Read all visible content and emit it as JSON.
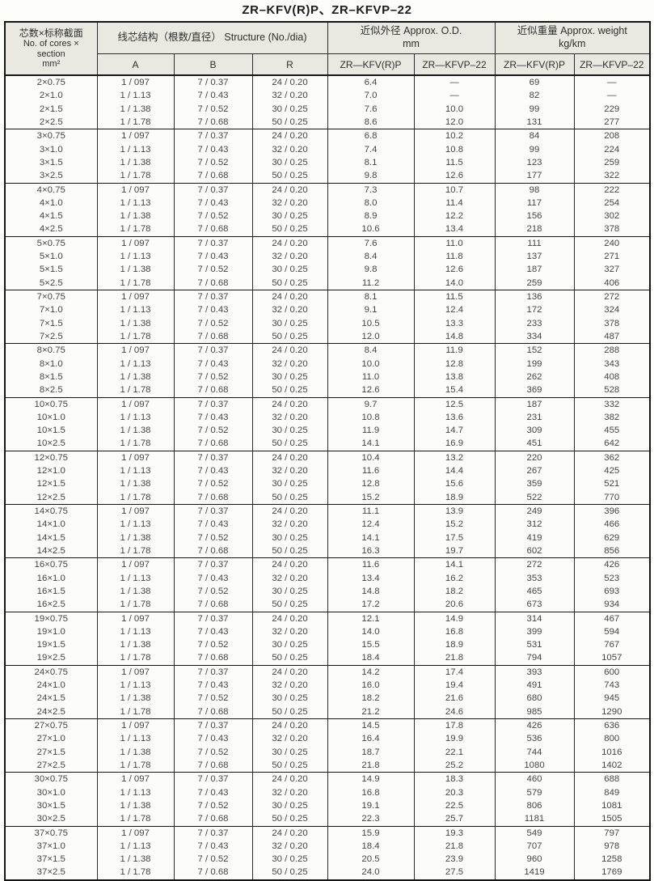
{
  "title": "ZR–KFV(R)P、ZR–KFVP–22",
  "table": {
    "column_keys": [
      "cores-section",
      "structure-a",
      "structure-b",
      "structure-r",
      "od-zr-kfvrp",
      "od-zr-kfvp22",
      "weight-zr-kfvrp",
      "weight-zr-kfvp22"
    ],
    "header": {
      "cores": {
        "zh": "芯数×标称截面",
        "en_line1": "No. of cores ×",
        "en_line2": "section",
        "unit": "mm²"
      },
      "structure": {
        "label": "线芯结构（根数/直径） Structure (No./dia)",
        "sub": [
          "A",
          "B",
          "R"
        ]
      },
      "od": {
        "label": "近似外径 Approx. O.D.",
        "unit": "mm",
        "sub": [
          "ZR—KFV(R)P",
          "ZR—KFVP–22"
        ]
      },
      "weight": {
        "label": "近似重量 Approx. weight",
        "unit": "kg/km",
        "sub": [
          "ZR—KFV(R)P",
          "ZR—KFVP–22"
        ]
      }
    },
    "groups": [
      {
        "core": "2",
        "rows": [
          [
            "2×0.75",
            "1 / 097",
            "7 / 0.37",
            "24 / 0.20",
            "6.4",
            "—",
            "69",
            "—"
          ],
          [
            "2×1.0",
            "1 / 1.13",
            "7 / 0.43",
            "32 / 0.20",
            "7.0",
            "—",
            "82",
            "—"
          ],
          [
            "2×1.5",
            "1 / 1.38",
            "7 / 0.52",
            "30 / 0.25",
            "7.6",
            "10.0",
            "99",
            "229"
          ],
          [
            "2×2.5",
            "1 / 1.78",
            "7 / 0.68",
            "50 / 0.25",
            "8.6",
            "12.0",
            "131",
            "277"
          ]
        ]
      },
      {
        "core": "3",
        "rows": [
          [
            "3×0.75",
            "1 / 097",
            "7 / 0.37",
            "24 / 0.20",
            "6.8",
            "10.2",
            "84",
            "208"
          ],
          [
            "3×1.0",
            "1 / 1.13",
            "7 / 0.43",
            "32 / 0.20",
            "7.4",
            "10.8",
            "99",
            "224"
          ],
          [
            "3×1.5",
            "1 / 1.38",
            "7 / 0.52",
            "30 / 0.25",
            "8.1",
            "11.5",
            "123",
            "259"
          ],
          [
            "3×2.5",
            "1 / 1.78",
            "7 / 0.68",
            "50 / 0.25",
            "9.8",
            "12.6",
            "177",
            "322"
          ]
        ]
      },
      {
        "core": "4",
        "rows": [
          [
            "4×0.75",
            "1 / 097",
            "7 / 0.37",
            "24 / 0.20",
            "7.3",
            "10.7",
            "98",
            "222"
          ],
          [
            "4×1.0",
            "1 / 1.13",
            "7 / 0.43",
            "32 / 0.20",
            "8.0",
            "11.4",
            "117",
            "254"
          ],
          [
            "4×1.5",
            "1 / 1.38",
            "7 / 0.52",
            "30 / 0.25",
            "8.9",
            "12.2",
            "156",
            "302"
          ],
          [
            "4×2.5",
            "1 / 1.78",
            "7 / 0.68",
            "50 / 0.25",
            "10.6",
            "13.4",
            "218",
            "378"
          ]
        ]
      },
      {
        "core": "5",
        "rows": [
          [
            "5×0.75",
            "1 / 097",
            "7 / 0.37",
            "24 / 0.20",
            "7.6",
            "11.0",
            "111",
            "240"
          ],
          [
            "5×1.0",
            "1 / 1.13",
            "7 / 0.43",
            "32 / 0.20",
            "8.4",
            "11.8",
            "137",
            "271"
          ],
          [
            "5×1.5",
            "1 / 1.38",
            "7 / 0.52",
            "30 / 0.25",
            "9.8",
            "12.6",
            "187",
            "327"
          ],
          [
            "5×2.5",
            "1 / 1.78",
            "7 / 0.68",
            "50 / 0.25",
            "11.2",
            "14.0",
            "259",
            "406"
          ]
        ]
      },
      {
        "core": "7",
        "rows": [
          [
            "7×0.75",
            "1 / 097",
            "7 / 0.37",
            "24 / 0.20",
            "8.1",
            "11.5",
            "136",
            "272"
          ],
          [
            "7×1.0",
            "1 / 1.13",
            "7 / 0.43",
            "32 / 0.20",
            "9.1",
            "12.4",
            "172",
            "324"
          ],
          [
            "7×1.5",
            "1 / 1.38",
            "7 / 0.52",
            "30 / 0.25",
            "10.5",
            "13.3",
            "233",
            "378"
          ],
          [
            "7×2.5",
            "1 / 1.78",
            "7 / 0.68",
            "50 / 0.25",
            "12.0",
            "14.8",
            "334",
            "487"
          ]
        ]
      },
      {
        "core": "8",
        "rows": [
          [
            "8×0.75",
            "1 / 097",
            "7 / 0.37",
            "24 / 0.20",
            "8.4",
            "11.9",
            "152",
            "288"
          ],
          [
            "8×1.0",
            "1 / 1.13",
            "7 / 0.43",
            "32 / 0.20",
            "10.0",
            "12.8",
            "199",
            "343"
          ],
          [
            "8×1.5",
            "1 / 1.38",
            "7 / 0.52",
            "30 / 0.25",
            "11.0",
            "13.8",
            "262",
            "408"
          ],
          [
            "8×2.5",
            "1 / 1.78",
            "7 / 0.68",
            "50 / 0.25",
            "12.6",
            "15.4",
            "369",
            "528"
          ]
        ]
      },
      {
        "core": "10",
        "rows": [
          [
            "10×0.75",
            "1 / 097",
            "7 / 0.37",
            "24 / 0.20",
            "9.7",
            "12.5",
            "187",
            "332"
          ],
          [
            "10×1.0",
            "1 / 1.13",
            "7 / 0.43",
            "32 / 0.20",
            "10.8",
            "13.6",
            "231",
            "382"
          ],
          [
            "10×1.5",
            "1 / 1.38",
            "7 / 0.52",
            "30 / 0.25",
            "11.9",
            "14.7",
            "309",
            "455"
          ],
          [
            "10×2.5",
            "1 / 1.78",
            "7 / 0.68",
            "50 / 0.25",
            "14.1",
            "16.9",
            "451",
            "642"
          ]
        ]
      },
      {
        "core": "12",
        "rows": [
          [
            "12×0.75",
            "1 / 097",
            "7 / 0.37",
            "24 / 0.20",
            "10.4",
            "13.2",
            "220",
            "362"
          ],
          [
            "12×1.0",
            "1 / 1.13",
            "7 / 0.43",
            "32 / 0.20",
            "11.6",
            "14.4",
            "267",
            "425"
          ],
          [
            "12×1.5",
            "1 / 1.38",
            "7 / 0.52",
            "30 / 0.25",
            "12.8",
            "15.6",
            "359",
            "521"
          ],
          [
            "12×2.5",
            "1 / 1.78",
            "7 / 0.68",
            "50 / 0.25",
            "15.2",
            "18.9",
            "522",
            "770"
          ]
        ]
      },
      {
        "core": "14",
        "rows": [
          [
            "14×0.75",
            "1 / 097",
            "7 / 0.37",
            "24 / 0.20",
            "11.1",
            "13.9",
            "249",
            "396"
          ],
          [
            "14×1.0",
            "1 / 1.13",
            "7 / 0.43",
            "32 / 0.20",
            "12.4",
            "15.2",
            "312",
            "466"
          ],
          [
            "14×1.5",
            "1 / 1.38",
            "7 / 0.52",
            "30 / 0.25",
            "14.1",
            "17.5",
            "419",
            "629"
          ],
          [
            "14×2.5",
            "1 / 1.78",
            "7 / 0.68",
            "50 / 0.25",
            "16.3",
            "19.7",
            "602",
            "856"
          ]
        ]
      },
      {
        "core": "16",
        "rows": [
          [
            "16×0.75",
            "1 / 097",
            "7 / 0.37",
            "24 / 0.20",
            "11.6",
            "14.1",
            "272",
            "426"
          ],
          [
            "16×1.0",
            "1 / 1.13",
            "7 / 0.43",
            "32 / 0.20",
            "13.4",
            "16.2",
            "353",
            "523"
          ],
          [
            "16×1.5",
            "1 / 1.38",
            "7 / 0.52",
            "30 / 0.25",
            "14.8",
            "18.2",
            "465",
            "693"
          ],
          [
            "16×2.5",
            "1 / 1.78",
            "7 / 0.68",
            "50 / 0.25",
            "17.2",
            "20.6",
            "673",
            "934"
          ]
        ]
      },
      {
        "core": "19",
        "rows": [
          [
            "19×0.75",
            "1 / 097",
            "7 / 0.37",
            "24 / 0.20",
            "12.1",
            "14.9",
            "314",
            "467"
          ],
          [
            "19×1.0",
            "1 / 1.13",
            "7 / 0.43",
            "32 / 0.20",
            "14.0",
            "16.8",
            "399",
            "594"
          ],
          [
            "19×1.5",
            "1 / 1.38",
            "7 / 0.52",
            "30 / 0.25",
            "15.5",
            "18.9",
            "531",
            "767"
          ],
          [
            "19×2.5",
            "1 / 1.78",
            "7 / 0.68",
            "50 / 0.25",
            "18.4",
            "21.8",
            "794",
            "1057"
          ]
        ]
      },
      {
        "core": "24",
        "rows": [
          [
            "24×0.75",
            "1 / 097",
            "7 / 0.37",
            "24 / 0.20",
            "14.2",
            "17.4",
            "393",
            "600"
          ],
          [
            "24×1.0",
            "1 / 1.13",
            "7 / 0.43",
            "32 / 0.20",
            "16.0",
            "19.4",
            "491",
            "743"
          ],
          [
            "24×1.5",
            "1 / 1.38",
            "7 / 0.52",
            "30 / 0.25",
            "18.2",
            "21.6",
            "680",
            "945"
          ],
          [
            "24×2.5",
            "1 / 1.78",
            "7 / 0.68",
            "50 / 0.25",
            "21.2",
            "24.6",
            "985",
            "1290"
          ]
        ]
      },
      {
        "core": "27",
        "rows": [
          [
            "27×0.75",
            "1 / 097",
            "7 / 0.37",
            "24 / 0.20",
            "14.5",
            "17.8",
            "426",
            "636"
          ],
          [
            "27×1.0",
            "1 / 1.13",
            "7 / 0.43",
            "32 / 0.20",
            "16.4",
            "19.9",
            "536",
            "800"
          ],
          [
            "27×1.5",
            "1 / 1.38",
            "7 / 0.52",
            "30 / 0.25",
            "18.7",
            "22.1",
            "744",
            "1016"
          ],
          [
            "27×2.5",
            "1 / 1.78",
            "7 / 0.68",
            "50 / 0.25",
            "21.8",
            "25.2",
            "1080",
            "1402"
          ]
        ]
      },
      {
        "core": "30",
        "rows": [
          [
            "30×0.75",
            "1 / 097",
            "7 / 0.37",
            "24 / 0.20",
            "14.9",
            "18.3",
            "460",
            "688"
          ],
          [
            "30×1.0",
            "1 / 1.13",
            "7 / 0.43",
            "32 / 0.20",
            "16.8",
            "20.3",
            "579",
            "849"
          ],
          [
            "30×1.5",
            "1 / 1.38",
            "7 / 0.52",
            "30 / 0.25",
            "19.1",
            "22.5",
            "806",
            "1081"
          ],
          [
            "30×2.5",
            "1 / 1.78",
            "7 / 0.68",
            "50 / 0.25",
            "22.3",
            "25.7",
            "1181",
            "1505"
          ]
        ]
      },
      {
        "core": "37",
        "rows": [
          [
            "37×0.75",
            "1 / 097",
            "7 / 0.37",
            "24 / 0.20",
            "15.9",
            "19.3",
            "549",
            "797"
          ],
          [
            "37×1.0",
            "1 / 1.13",
            "7 / 0.43",
            "32 / 0.20",
            "18.4",
            "21.8",
            "707",
            "978"
          ],
          [
            "37×1.5",
            "1 / 1.38",
            "7 / 0.52",
            "30 / 0.25",
            "20.5",
            "23.9",
            "960",
            "1258"
          ],
          [
            "37×2.5",
            "1 / 1.78",
            "7 / 0.68",
            "50 / 0.25",
            "24.0",
            "27.5",
            "1419",
            "1769"
          ]
        ]
      }
    ]
  }
}
